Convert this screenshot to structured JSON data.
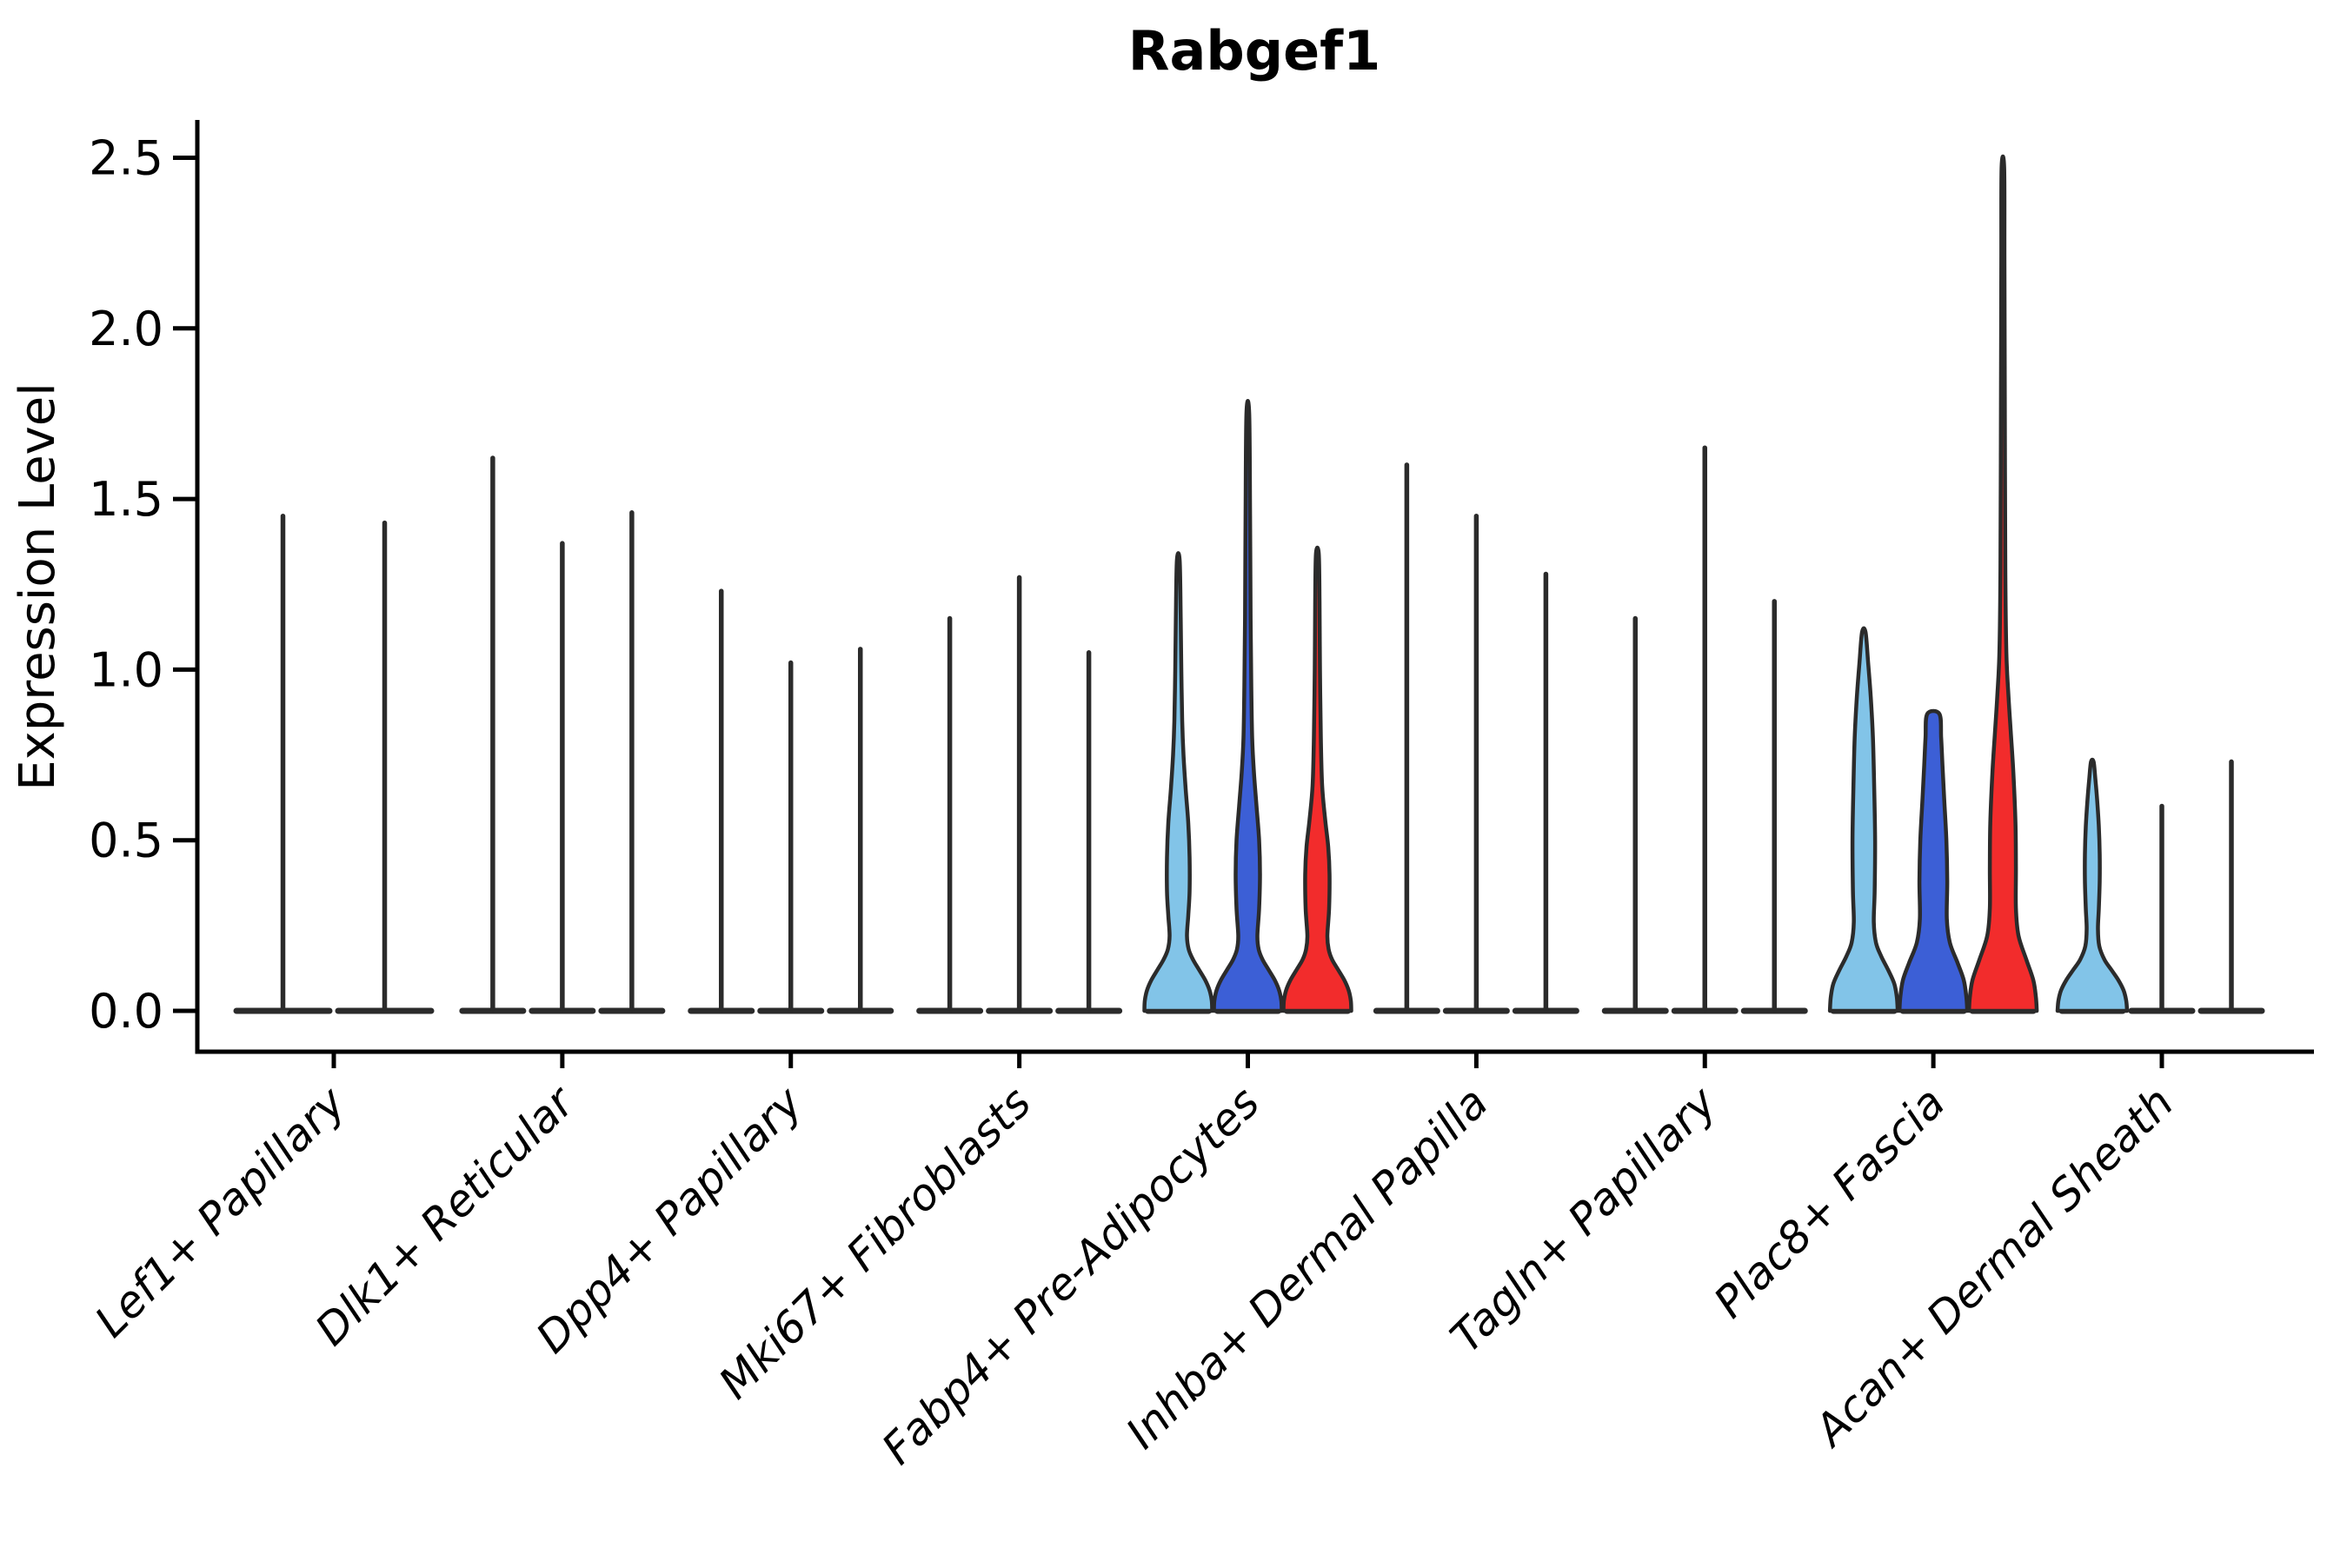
{
  "title": "Rabgef1",
  "y_axis": {
    "label": "Expression Level",
    "tick_labels": [
      "0.0",
      "0.5",
      "1.0",
      "1.5",
      "2.0",
      "2.5"
    ],
    "tick_values": [
      0,
      0.5,
      1.0,
      1.5,
      2.0,
      2.5
    ]
  },
  "colors": {
    "split_colors": [
      "#82C4E8",
      "#3C5FD6",
      "#F22C2C"
    ],
    "outline": "#2B2B2B",
    "axis": "#000000",
    "background": "#FFFFFF"
  },
  "chart_data": {
    "type": "violin",
    "title": "Rabgef1",
    "xlabel": "",
    "ylabel": "Expression Level",
    "ylim": [
      0,
      2.5
    ],
    "y_ticks": [
      0.0,
      0.5,
      1.0,
      1.5,
      2.0,
      2.5
    ],
    "legend": "none",
    "grid": "off",
    "split_colors": [
      "#82C4E8",
      "#3C5FD6",
      "#F22C2C"
    ],
    "categories": [
      "Lef1+ Papillary",
      "Dlk1+ Reticular",
      "Dpp4+ Papillary",
      "Mki67+ Fibroblasts",
      "Fabp4+ Pre-Adipocytes",
      "Inhba+ Dermal Papilla",
      "Tagln+ Papillary",
      "Plac8+ Fascia",
      "Acan+ Dermal Sheath"
    ],
    "groups": [
      {
        "label": "Lef1+ Papillary",
        "violins": [
          {
            "split": 0,
            "max": 1.45,
            "shape": "spike"
          },
          {
            "split": 1,
            "max": 1.43,
            "shape": "spike"
          }
        ]
      },
      {
        "label": "Dlk1+ Reticular",
        "violins": [
          {
            "split": 0,
            "max": 1.62,
            "shape": "spike"
          },
          {
            "split": 1,
            "max": 1.37,
            "shape": "spike"
          },
          {
            "split": 2,
            "max": 1.46,
            "shape": "spike"
          }
        ]
      },
      {
        "label": "Dpp4+ Papillary",
        "violins": [
          {
            "split": 0,
            "max": 1.23,
            "shape": "spike"
          },
          {
            "split": 1,
            "max": 1.02,
            "shape": "spike"
          },
          {
            "split": 2,
            "max": 1.06,
            "shape": "spike"
          }
        ]
      },
      {
        "label": "Mki67+ Fibroblasts",
        "violins": [
          {
            "split": 0,
            "max": 1.15,
            "shape": "spike"
          },
          {
            "split": 1,
            "max": 1.27,
            "shape": "spike"
          },
          {
            "split": 2,
            "max": 1.05,
            "shape": "spike"
          }
        ]
      },
      {
        "label": "Fabp4+ Pre-Adipocytes",
        "violins": [
          {
            "split": 0,
            "max": 1.32,
            "shape": "body",
            "profile": [
              [
                0,
                39
              ],
              [
                0.03,
                38.5
              ],
              [
                0.06,
                36
              ],
              [
                0.09,
                31
              ],
              [
                0.12,
                24
              ],
              [
                0.15,
                17
              ],
              [
                0.18,
                12
              ],
              [
                0.22,
                10
              ],
              [
                0.28,
                11.5
              ],
              [
                0.35,
                13
              ],
              [
                0.45,
                13
              ],
              [
                0.55,
                11.5
              ],
              [
                0.65,
                8.5
              ],
              [
                0.75,
                6
              ],
              [
                0.85,
                4.5
              ],
              [
                1.0,
                3.5
              ],
              [
                1.15,
                2.8
              ],
              [
                1.32,
                1.6
              ]
            ]
          },
          {
            "split": 1,
            "max": 1.75,
            "shape": "body",
            "profile": [
              [
                0,
                39
              ],
              [
                0.03,
                38.5
              ],
              [
                0.06,
                36
              ],
              [
                0.09,
                31
              ],
              [
                0.12,
                24
              ],
              [
                0.15,
                17
              ],
              [
                0.18,
                12.5
              ],
              [
                0.22,
                11
              ],
              [
                0.3,
                13
              ],
              [
                0.4,
                14
              ],
              [
                0.5,
                13
              ],
              [
                0.6,
                10
              ],
              [
                0.7,
                7
              ],
              [
                0.8,
                5
              ],
              [
                0.95,
                4
              ],
              [
                1.15,
                3.2
              ],
              [
                1.45,
                2.6
              ],
              [
                1.75,
                1.6
              ]
            ]
          },
          {
            "split": 2,
            "max": 1.34,
            "shape": "body",
            "profile": [
              [
                0,
                39
              ],
              [
                0.03,
                38.5
              ],
              [
                0.06,
                36
              ],
              [
                0.09,
                31
              ],
              [
                0.12,
                24
              ],
              [
                0.15,
                17
              ],
              [
                0.18,
                13
              ],
              [
                0.22,
                11.5
              ],
              [
                0.3,
                13.5
              ],
              [
                0.4,
                14
              ],
              [
                0.48,
                12.5
              ],
              [
                0.56,
                9
              ],
              [
                0.66,
                5.5
              ],
              [
                0.8,
                4
              ],
              [
                1.0,
                3
              ],
              [
                1.2,
                2.5
              ],
              [
                1.34,
                1.6
              ]
            ]
          }
        ]
      },
      {
        "label": "Inhba+ Dermal Papilla",
        "violins": [
          {
            "split": 0,
            "max": 1.6,
            "shape": "spike"
          },
          {
            "split": 1,
            "max": 1.45,
            "shape": "spike"
          },
          {
            "split": 2,
            "max": 1.28,
            "shape": "spike"
          }
        ]
      },
      {
        "label": "Tagln+ Papillary",
        "violins": [
          {
            "split": 0,
            "max": 1.15,
            "shape": "spike"
          },
          {
            "split": 1,
            "max": 1.65,
            "shape": "spike"
          },
          {
            "split": 2,
            "max": 1.2,
            "shape": "spike"
          }
        ]
      },
      {
        "label": "Plac8+ Fascia",
        "violins": [
          {
            "split": 0,
            "max": 1.11,
            "shape": "body",
            "profile": [
              [
                0,
                39
              ],
              [
                0.04,
                38
              ],
              [
                0.08,
                35
              ],
              [
                0.12,
                28
              ],
              [
                0.16,
                20
              ],
              [
                0.2,
                14
              ],
              [
                0.26,
                11.5
              ],
              [
                0.35,
                12.5
              ],
              [
                0.5,
                13
              ],
              [
                0.65,
                12
              ],
              [
                0.8,
                10.5
              ],
              [
                0.92,
                8
              ],
              [
                1.02,
                5
              ],
              [
                1.11,
                2
              ]
            ]
          },
          {
            "split": 1,
            "max": 0.87,
            "shape": "body",
            "profile": [
              [
                0,
                39
              ],
              [
                0.04,
                38
              ],
              [
                0.09,
                35
              ],
              [
                0.14,
                28
              ],
              [
                0.2,
                19
              ],
              [
                0.27,
                15.5
              ],
              [
                0.38,
                16
              ],
              [
                0.5,
                15
              ],
              [
                0.62,
                12.5
              ],
              [
                0.72,
                10.5
              ],
              [
                0.8,
                9
              ],
              [
                0.87,
                7
              ]
            ]
          },
          {
            "split": 2,
            "max": 2.47,
            "shape": "body",
            "profile": [
              [
                0,
                39
              ],
              [
                0.04,
                38
              ],
              [
                0.09,
                35
              ],
              [
                0.15,
                27
              ],
              [
                0.22,
                18
              ],
              [
                0.3,
                15
              ],
              [
                0.42,
                15
              ],
              [
                0.55,
                14.5
              ],
              [
                0.7,
                12
              ],
              [
                0.82,
                9
              ],
              [
                0.92,
                6.5
              ],
              [
                1.05,
                4
              ],
              [
                1.3,
                2.8
              ],
              [
                1.8,
                2.2
              ],
              [
                2.2,
                1.8
              ],
              [
                2.47,
                1.5
              ]
            ]
          }
        ]
      },
      {
        "label": "Acan+ Dermal Sheath",
        "violins": [
          {
            "split": 0,
            "max": 0.73,
            "shape": "body",
            "profile": [
              [
                0,
                40
              ],
              [
                0.03,
                39
              ],
              [
                0.06,
                36
              ],
              [
                0.09,
                30
              ],
              [
                0.12,
                22
              ],
              [
                0.15,
                14
              ],
              [
                0.19,
                8
              ],
              [
                0.24,
                6.5
              ],
              [
                0.3,
                7.5
              ],
              [
                0.38,
                8.5
              ],
              [
                0.46,
                8.5
              ],
              [
                0.54,
                7.5
              ],
              [
                0.62,
                5.5
              ],
              [
                0.68,
                3.5
              ],
              [
                0.73,
                1.5
              ]
            ]
          },
          {
            "split": 1,
            "max": 0.6,
            "shape": "spike"
          },
          {
            "split": 2,
            "max": 0.73,
            "shape": "spike"
          }
        ]
      }
    ]
  }
}
